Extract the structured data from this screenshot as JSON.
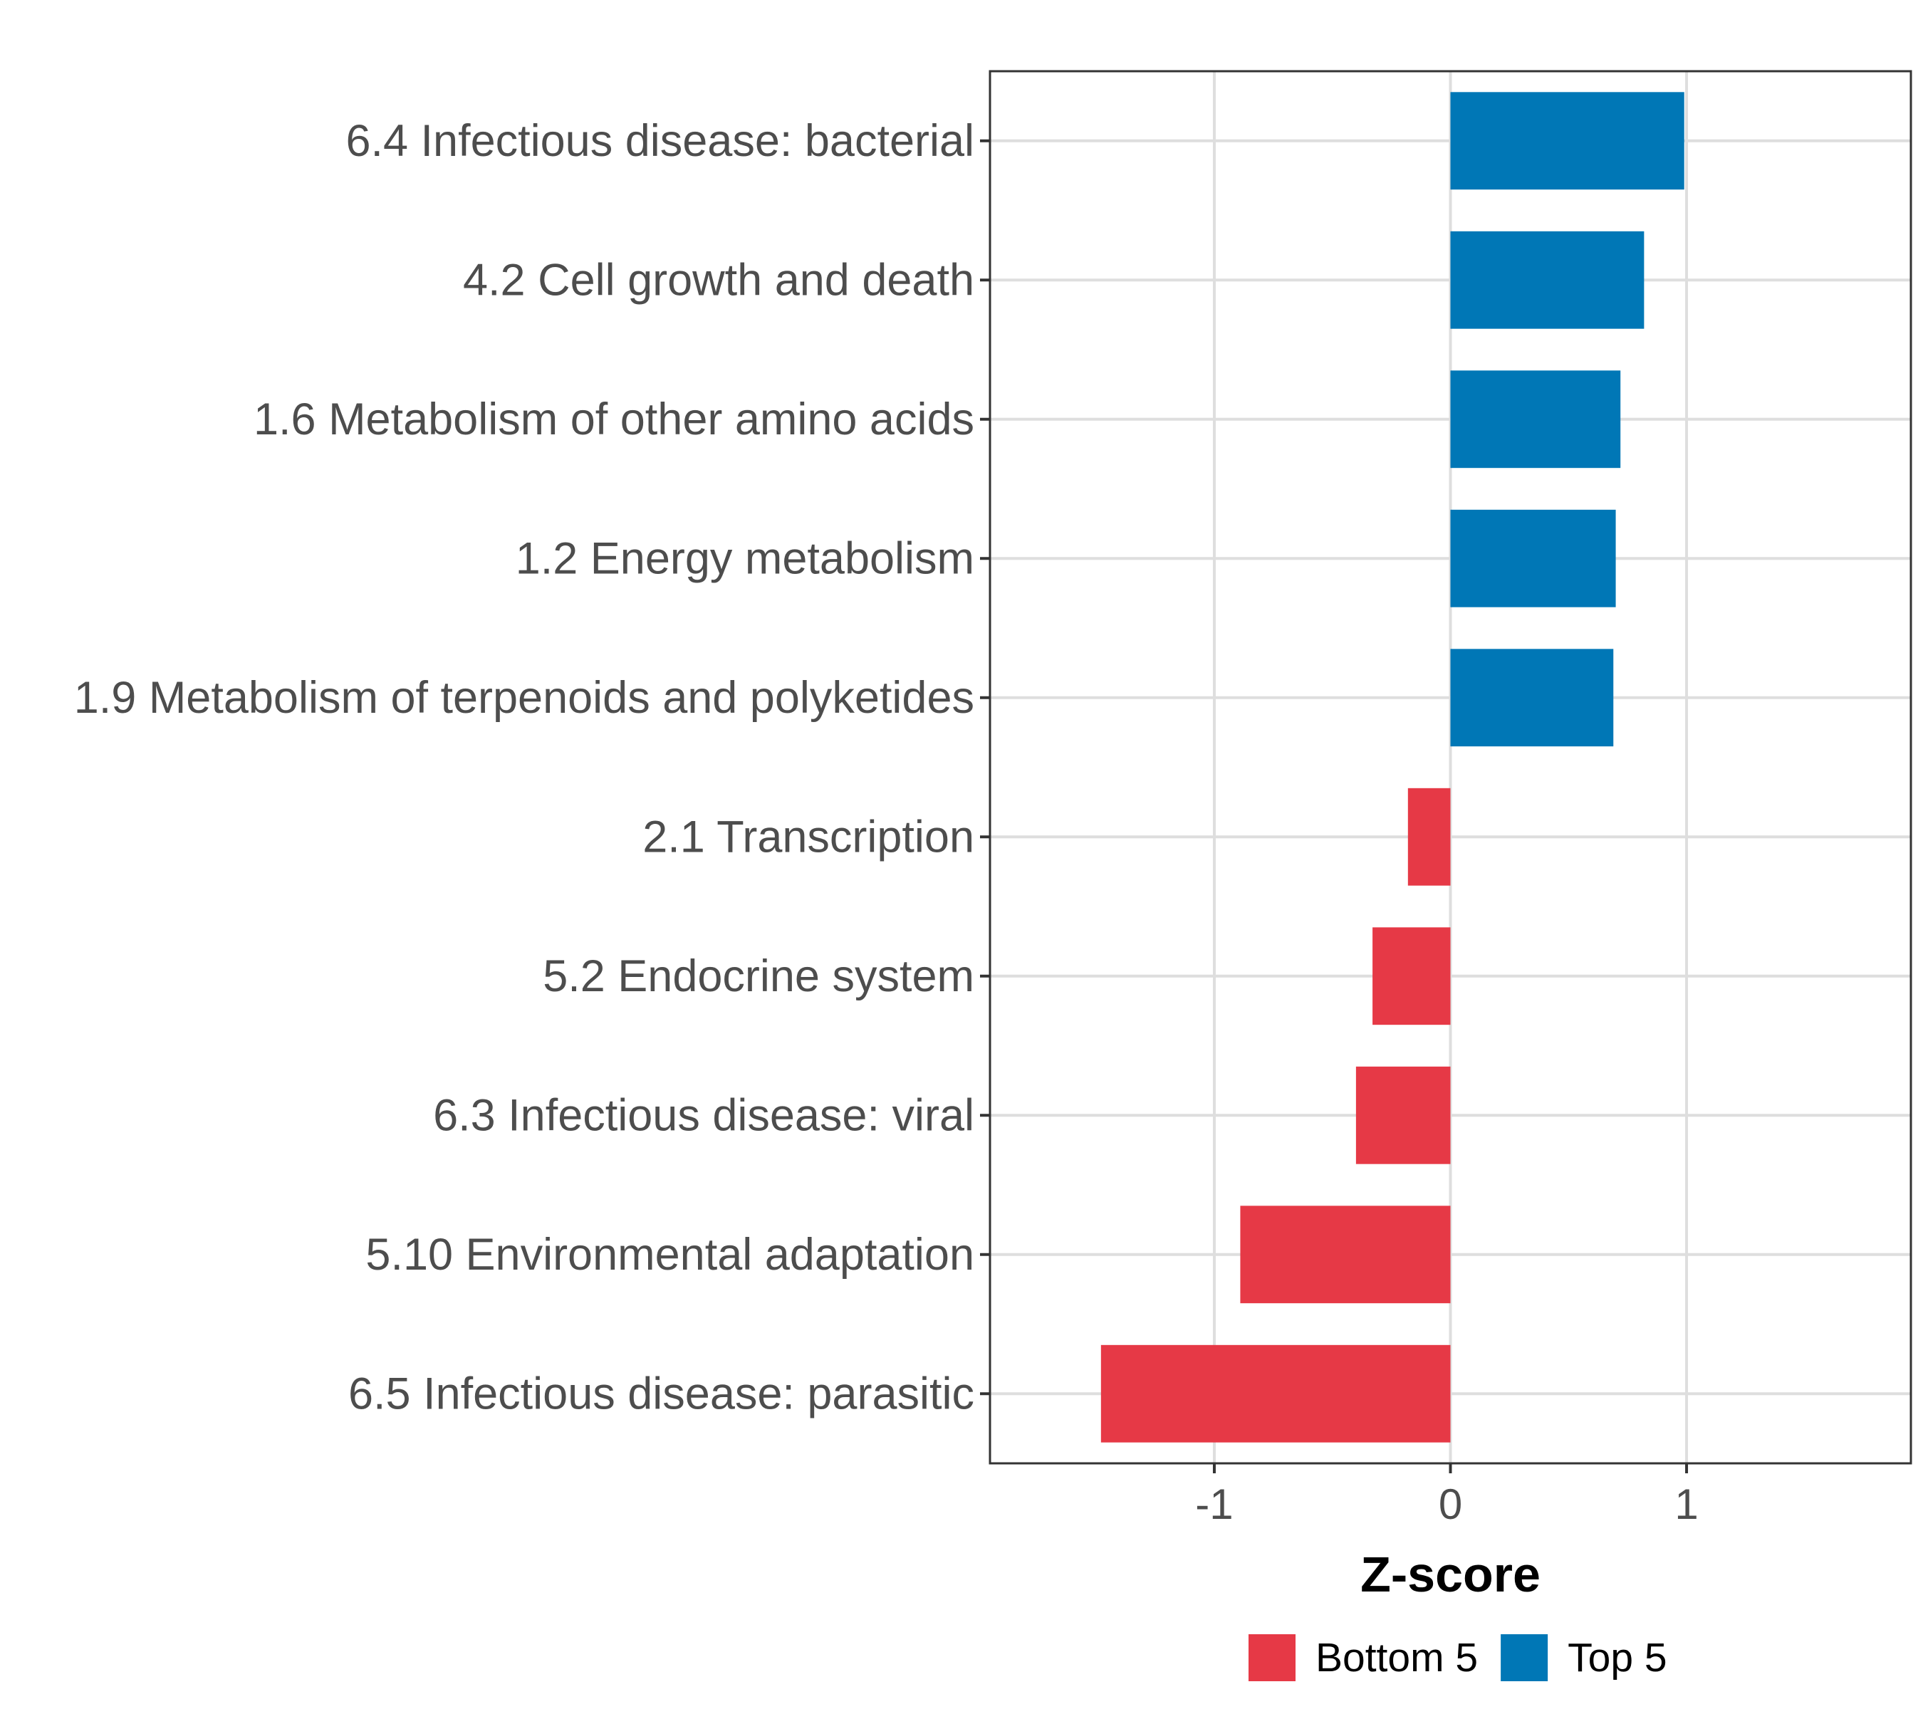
{
  "chart_data": {
    "type": "bar",
    "orientation": "horizontal",
    "title": "",
    "xlabel": "Z-score",
    "ylabel": "",
    "xlim": [
      -1.95,
      1.95
    ],
    "xticks": [
      -1,
      0,
      1
    ],
    "xtick_labels": [
      "-1",
      "0",
      "1"
    ],
    "grid": true,
    "legend_position": "bottom",
    "categories": [
      "6.4 Infectious disease: bacterial",
      "4.2 Cell growth and death",
      "1.6 Metabolism of other amino acids",
      "1.2 Energy metabolism",
      "1.9 Metabolism of terpenoids and polyketides",
      "2.1 Transcription",
      "5.2 Endocrine system",
      "6.3 Infectious disease: viral",
      "5.10 Environmental adaptation",
      "6.5 Infectious disease: parasitic"
    ],
    "values": [
      0.99,
      0.82,
      0.72,
      0.7,
      0.69,
      -0.18,
      -0.33,
      -0.4,
      -0.89,
      -1.48
    ],
    "groups": [
      "Top 5",
      "Top 5",
      "Top 5",
      "Top 5",
      "Top 5",
      "Bottom 5",
      "Bottom 5",
      "Bottom 5",
      "Bottom 5",
      "Bottom 5"
    ],
    "legend": [
      {
        "name": "Bottom 5",
        "color": "#e63946"
      },
      {
        "name": "Top 5",
        "color": "#0077b6"
      }
    ]
  }
}
